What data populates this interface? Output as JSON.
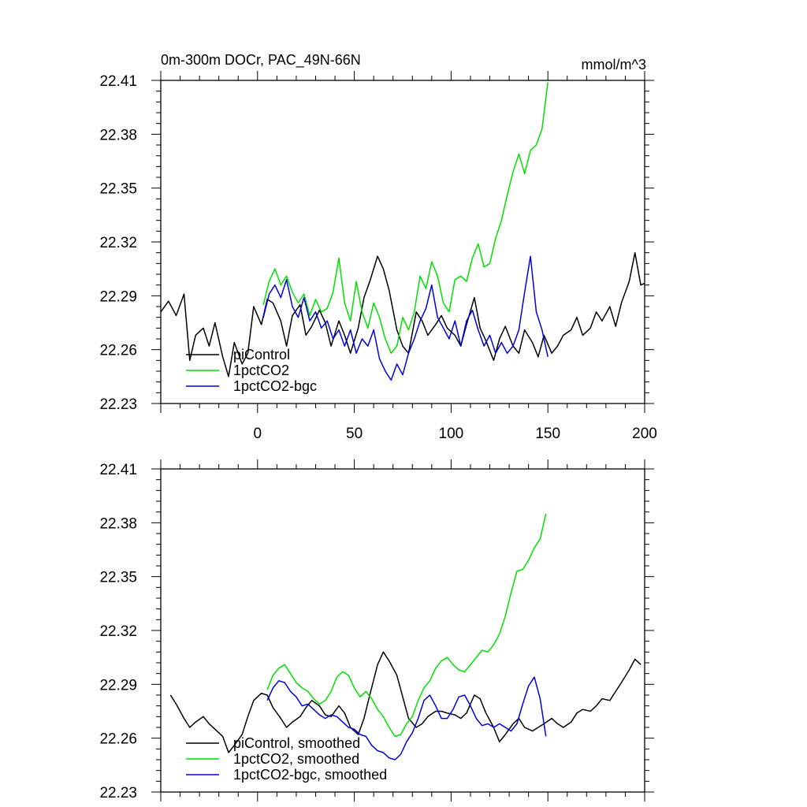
{
  "chart_data": [
    {
      "type": "line",
      "title": "0m-300m DOCr, PAC_49N-66N",
      "units": "mmol/m^3",
      "xlabel": "",
      "ylabel": "",
      "xlim": [
        -50,
        200
      ],
      "ylim": [
        22.23,
        22.41
      ],
      "xticks": [
        0,
        50,
        100,
        150,
        200
      ],
      "xtick_labels": [
        "0",
        "50",
        "100",
        "150",
        "200"
      ],
      "yticks": [
        22.23,
        22.26,
        22.29,
        22.32,
        22.35,
        22.38,
        22.41
      ],
      "ytick_labels": [
        "22.23",
        "22.26",
        "22.29",
        "22.32",
        "22.35",
        "22.38",
        "22.41"
      ],
      "legend_position": "bottom-left",
      "series": [
        {
          "name": "piControl",
          "color": "#000000",
          "x": [
            -50,
            -46,
            -42,
            -38,
            -35,
            -32,
            -28,
            -25,
            -22,
            -18,
            -15,
            -12,
            -8,
            -5,
            -2,
            2,
            5,
            8,
            12,
            15,
            18,
            22,
            25,
            28,
            32,
            35,
            38,
            42,
            45,
            48,
            52,
            55,
            58,
            62,
            65,
            68,
            72,
            75,
            78,
            82,
            85,
            88,
            92,
            95,
            98,
            102,
            105,
            108,
            112,
            115,
            118,
            122,
            125,
            128,
            132,
            135,
            138,
            142,
            145,
            148,
            152,
            155,
            158,
            162,
            165,
            168,
            172,
            175,
            178,
            182,
            185,
            188,
            192,
            195,
            198,
            200
          ],
          "values": [
            22.281,
            22.287,
            22.279,
            22.291,
            22.254,
            22.268,
            22.272,
            22.262,
            22.275,
            22.256,
            22.245,
            22.264,
            22.252,
            22.258,
            22.284,
            22.274,
            22.288,
            22.286,
            22.276,
            22.262,
            22.279,
            22.285,
            22.268,
            22.273,
            22.282,
            22.275,
            22.262,
            22.276,
            22.268,
            22.258,
            22.272,
            22.289,
            22.298,
            22.312,
            22.305,
            22.293,
            22.271,
            22.262,
            22.258,
            22.281,
            22.276,
            22.268,
            22.274,
            22.279,
            22.272,
            22.268,
            22.262,
            22.274,
            22.289,
            22.272,
            22.265,
            22.254,
            22.266,
            22.273,
            22.262,
            22.258,
            22.271,
            22.264,
            22.256,
            22.268,
            22.258,
            22.262,
            22.268,
            22.271,
            22.278,
            22.268,
            22.272,
            22.281,
            22.276,
            22.284,
            22.273,
            22.286,
            22.298,
            22.314,
            22.296,
            22.297
          ]
        },
        {
          "name": "1pctCO2",
          "color": "#00e000",
          "x": [
            3,
            6,
            9,
            12,
            15,
            18,
            21,
            24,
            27,
            30,
            33,
            36,
            39,
            42,
            45,
            48,
            51,
            54,
            57,
            60,
            63,
            66,
            69,
            72,
            75,
            78,
            81,
            84,
            87,
            90,
            93,
            96,
            99,
            102,
            105,
            108,
            111,
            114,
            117,
            120,
            123,
            126,
            129,
            132,
            135,
            138,
            141,
            144,
            147,
            150
          ],
          "values": [
            22.285,
            22.298,
            22.305,
            22.296,
            22.301,
            22.292,
            22.286,
            22.291,
            22.279,
            22.288,
            22.281,
            22.283,
            22.292,
            22.311,
            22.286,
            22.276,
            22.298,
            22.281,
            22.272,
            22.286,
            22.278,
            22.266,
            22.258,
            22.262,
            22.278,
            22.271,
            22.281,
            22.301,
            22.294,
            22.309,
            22.301,
            22.286,
            22.281,
            22.299,
            22.301,
            22.298,
            22.311,
            22.319,
            22.306,
            22.308,
            22.322,
            22.332,
            22.346,
            22.359,
            22.369,
            22.358,
            22.371,
            22.374,
            22.383,
            22.409
          ]
        },
        {
          "name": "1pctCO2-bgc",
          "color": "#0000e0",
          "x": [
            3,
            6,
            9,
            12,
            15,
            18,
            21,
            24,
            27,
            30,
            33,
            36,
            39,
            42,
            45,
            48,
            51,
            54,
            57,
            60,
            63,
            66,
            69,
            72,
            75,
            78,
            81,
            84,
            87,
            90,
            93,
            96,
            99,
            102,
            105,
            108,
            111,
            114,
            117,
            120,
            123,
            126,
            129,
            132,
            135,
            138,
            141,
            144,
            147,
            150
          ],
          "values": [
            22.278,
            22.291,
            22.296,
            22.289,
            22.299,
            22.284,
            22.278,
            22.289,
            22.276,
            22.281,
            22.272,
            22.276,
            22.266,
            22.271,
            22.262,
            22.271,
            22.258,
            22.266,
            22.262,
            22.271,
            22.255,
            22.248,
            22.243,
            22.252,
            22.246,
            22.258,
            22.266,
            22.276,
            22.283,
            22.296,
            22.278,
            22.272,
            22.266,
            22.276,
            22.262,
            22.276,
            22.282,
            22.271,
            22.262,
            22.268,
            22.258,
            22.264,
            22.258,
            22.262,
            22.271,
            22.292,
            22.312,
            22.281,
            22.271,
            22.256
          ]
        }
      ]
    },
    {
      "type": "line",
      "title": "",
      "xlabel": "",
      "ylabel": "",
      "xlim": [
        -50,
        200
      ],
      "ylim": [
        22.23,
        22.41
      ],
      "yticks": [
        22.23,
        22.26,
        22.29,
        22.32,
        22.35,
        22.38,
        22.41
      ],
      "ytick_labels": [
        "22.23",
        "22.26",
        "22.29",
        "22.32",
        "22.35",
        "22.38",
        "22.41"
      ],
      "legend_position": "bottom-left",
      "series": [
        {
          "name": "piControl, smoothed",
          "color": "#000000",
          "x": [
            -45,
            -42,
            -38,
            -35,
            -32,
            -28,
            -25,
            -22,
            -18,
            -15,
            -12,
            -8,
            -5,
            -2,
            2,
            5,
            8,
            12,
            15,
            18,
            22,
            25,
            28,
            32,
            35,
            38,
            42,
            45,
            48,
            52,
            55,
            58,
            62,
            65,
            68,
            72,
            75,
            78,
            82,
            85,
            88,
            92,
            95,
            98,
            102,
            105,
            108,
            112,
            115,
            118,
            122,
            125,
            128,
            132,
            135,
            138,
            142,
            145,
            148,
            152,
            155,
            158,
            162,
            165,
            168,
            172,
            175,
            178,
            182,
            185,
            188,
            192,
            195,
            198
          ],
          "values": [
            22.284,
            22.279,
            22.271,
            22.266,
            22.269,
            22.272,
            22.268,
            22.265,
            22.261,
            22.252,
            22.256,
            22.262,
            22.272,
            22.281,
            22.285,
            22.284,
            22.277,
            22.271,
            22.266,
            22.269,
            22.272,
            22.277,
            22.281,
            22.278,
            22.273,
            22.272,
            22.278,
            22.274,
            22.266,
            22.262,
            22.271,
            22.284,
            22.301,
            22.308,
            22.303,
            22.295,
            22.283,
            22.271,
            22.266,
            22.268,
            22.272,
            22.275,
            22.275,
            22.274,
            22.273,
            22.271,
            22.274,
            22.284,
            22.282,
            22.274,
            22.266,
            22.258,
            22.262,
            22.268,
            22.271,
            22.266,
            22.264,
            22.266,
            22.268,
            22.271,
            22.268,
            22.266,
            22.269,
            22.274,
            22.276,
            22.275,
            22.278,
            22.282,
            22.281,
            22.286,
            22.291,
            22.298,
            22.304,
            22.301
          ]
        },
        {
          "name": "1pctCO2, smoothed",
          "color": "#00e000",
          "x": [
            5,
            8,
            11,
            14,
            17,
            20,
            23,
            26,
            29,
            32,
            35,
            38,
            41,
            44,
            47,
            50,
            53,
            56,
            59,
            62,
            65,
            68,
            71,
            74,
            77,
            80,
            83,
            86,
            89,
            92,
            95,
            98,
            101,
            104,
            107,
            110,
            113,
            116,
            119,
            122,
            125,
            128,
            131,
            134,
            137,
            140,
            143,
            146,
            149
          ],
          "values": [
            22.287,
            22.295,
            22.299,
            22.301,
            22.296,
            22.291,
            22.288,
            22.286,
            22.282,
            22.279,
            22.281,
            22.286,
            22.294,
            22.297,
            22.295,
            22.288,
            22.283,
            22.286,
            22.282,
            22.276,
            22.272,
            22.266,
            22.261,
            22.262,
            22.268,
            22.272,
            22.281,
            22.288,
            22.292,
            22.299,
            22.303,
            22.305,
            22.301,
            22.298,
            22.297,
            22.301,
            22.305,
            22.309,
            22.308,
            22.312,
            22.318,
            22.328,
            22.341,
            22.353,
            22.354,
            22.359,
            22.366,
            22.371,
            22.385
          ]
        },
        {
          "name": "1pctCO2-bgc, smoothed",
          "color": "#0000e0",
          "x": [
            5,
            8,
            11,
            14,
            17,
            20,
            23,
            26,
            29,
            32,
            35,
            38,
            41,
            44,
            47,
            50,
            53,
            56,
            59,
            62,
            65,
            68,
            71,
            74,
            77,
            80,
            83,
            86,
            89,
            92,
            95,
            98,
            101,
            104,
            107,
            110,
            113,
            116,
            119,
            122,
            125,
            128,
            131,
            134,
            137,
            140,
            143,
            146,
            149
          ],
          "values": [
            22.281,
            22.288,
            22.292,
            22.291,
            22.286,
            22.283,
            22.278,
            22.279,
            22.276,
            22.273,
            22.271,
            22.273,
            22.272,
            22.269,
            22.266,
            22.265,
            22.262,
            22.261,
            22.256,
            22.253,
            22.252,
            22.249,
            22.248,
            22.251,
            22.258,
            22.263,
            22.271,
            22.281,
            22.284,
            22.278,
            22.271,
            22.271,
            22.276,
            22.283,
            22.284,
            22.278,
            22.271,
            22.267,
            22.268,
            22.266,
            22.268,
            22.266,
            22.264,
            22.268,
            22.279,
            22.289,
            22.294,
            22.282,
            22.261
          ]
        }
      ]
    }
  ]
}
